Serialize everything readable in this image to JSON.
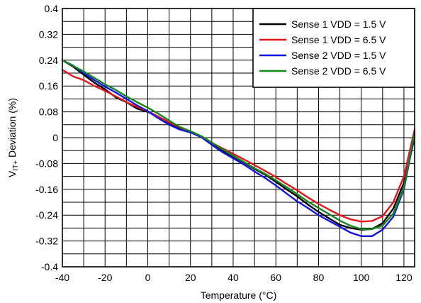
{
  "chart_data": {
    "type": "line",
    "title": "",
    "xlabel": "Temperature (°C)",
    "ylabel": {
      "main": "V",
      "sub": "IT+",
      "rest": " Deviation (%)"
    },
    "xlim": [
      -40,
      125
    ],
    "ylim": [
      -0.4,
      0.4
    ],
    "grid": true,
    "legend_position": "top-right",
    "x_ticks": [
      -40,
      -20,
      0,
      20,
      40,
      60,
      80,
      100,
      120
    ],
    "x_tick_labels": [
      "-40",
      "-20",
      "0",
      "20",
      "40",
      "60",
      "80",
      "100",
      "120"
    ],
    "y_ticks": [
      0.4,
      0.32,
      0.24,
      0.16,
      0.08,
      0,
      -0.08,
      -0.16,
      -0.24,
      -0.32,
      -0.4
    ],
    "y_tick_labels": [
      "0.4",
      "0.32",
      "0.24",
      "0.16",
      "0.08",
      "0",
      "-0.08",
      "-0.16",
      "-0.24",
      "-0.32",
      "-0.4"
    ],
    "series": [
      {
        "name": "Sense 1 VDD = 1.5 V",
        "color": "#000000",
        "x": [
          -40,
          -35,
          -30,
          -25,
          -20,
          -15,
          -10,
          -5,
          0,
          5,
          10,
          15,
          20,
          25,
          30,
          35,
          40,
          45,
          50,
          55,
          60,
          65,
          70,
          75,
          80,
          85,
          90,
          95,
          100,
          105,
          110,
          115,
          120,
          125
        ],
        "y": [
          0.24,
          0.22,
          0.195,
          0.17,
          0.15,
          0.125,
          0.11,
          0.09,
          0.08,
          0.065,
          0.043,
          0.028,
          0.018,
          0.003,
          -0.02,
          -0.04,
          -0.058,
          -0.077,
          -0.097,
          -0.115,
          -0.137,
          -0.16,
          -0.182,
          -0.207,
          -0.23,
          -0.25,
          -0.27,
          -0.28,
          -0.285,
          -0.283,
          -0.265,
          -0.22,
          -0.14,
          0.0
        ]
      },
      {
        "name": "Sense 1 VDD = 6.5 V",
        "color": "#e8141b",
        "x": [
          -40,
          -35,
          -30,
          -25,
          -20,
          -15,
          -10,
          -5,
          0,
          5,
          10,
          15,
          20,
          25,
          30,
          35,
          40,
          45,
          50,
          55,
          60,
          65,
          70,
          75,
          80,
          85,
          90,
          95,
          100,
          105,
          110,
          115,
          120,
          125
        ],
        "y": [
          0.21,
          0.19,
          0.178,
          0.16,
          0.145,
          0.128,
          0.11,
          0.095,
          0.082,
          0.065,
          0.048,
          0.032,
          0.017,
          0.002,
          -0.016,
          -0.033,
          -0.05,
          -0.067,
          -0.085,
          -0.103,
          -0.122,
          -0.143,
          -0.163,
          -0.185,
          -0.205,
          -0.223,
          -0.24,
          -0.253,
          -0.26,
          -0.258,
          -0.243,
          -0.2,
          -0.12,
          0.025
        ]
      },
      {
        "name": "Sense 2 VDD = 1.5 V",
        "color": "#1414e0",
        "x": [
          -40,
          -35,
          -30,
          -25,
          -20,
          -15,
          -10,
          -5,
          0,
          5,
          10,
          15,
          20,
          25,
          30,
          35,
          40,
          45,
          50,
          55,
          60,
          65,
          70,
          75,
          80,
          85,
          90,
          95,
          100,
          105,
          110,
          115,
          120,
          125
        ],
        "y": [
          0.24,
          0.223,
          0.2,
          0.178,
          0.158,
          0.14,
          0.12,
          0.1,
          0.082,
          0.06,
          0.04,
          0.025,
          0.016,
          0.002,
          -0.022,
          -0.045,
          -0.064,
          -0.083,
          -0.105,
          -0.125,
          -0.148,
          -0.173,
          -0.197,
          -0.218,
          -0.24,
          -0.258,
          -0.276,
          -0.294,
          -0.305,
          -0.305,
          -0.285,
          -0.245,
          -0.16,
          0.01
        ]
      },
      {
        "name": "Sense 2 VDD = 6.5 V",
        "color": "#15861e",
        "x": [
          -40,
          -35,
          -30,
          -25,
          -20,
          -15,
          -10,
          -5,
          0,
          5,
          10,
          15,
          20,
          25,
          30,
          35,
          40,
          45,
          50,
          55,
          60,
          65,
          70,
          75,
          80,
          85,
          90,
          95,
          100,
          105,
          110,
          115,
          120,
          125
        ],
        "y": [
          0.24,
          0.222,
          0.205,
          0.185,
          0.165,
          0.148,
          0.128,
          0.11,
          0.093,
          0.074,
          0.053,
          0.033,
          0.02,
          0.005,
          -0.015,
          -0.036,
          -0.056,
          -0.075,
          -0.095,
          -0.112,
          -0.132,
          -0.153,
          -0.175,
          -0.198,
          -0.218,
          -0.237,
          -0.257,
          -0.273,
          -0.283,
          -0.283,
          -0.272,
          -0.235,
          -0.155,
          0.018
        ]
      }
    ]
  }
}
